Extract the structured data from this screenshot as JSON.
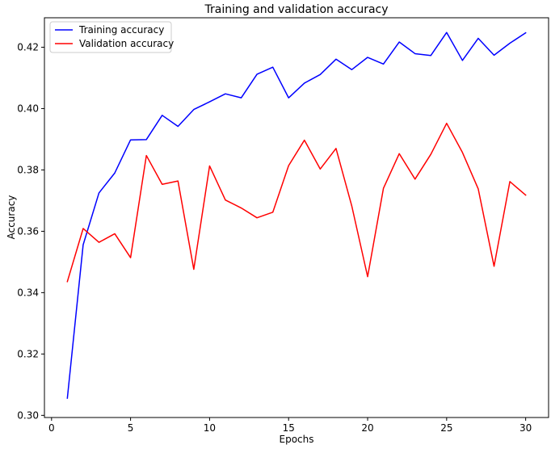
{
  "chart_data": {
    "type": "line",
    "title": "Training and validation accuracy",
    "xlabel": "Epochs",
    "ylabel": "Accuracy",
    "xlim": [
      -0.45,
      31.45
    ],
    "ylim": [
      0.2993,
      0.4296
    ],
    "xticks": [
      0,
      5,
      10,
      15,
      20,
      25,
      30
    ],
    "yticks": [
      0.3,
      0.32,
      0.34,
      0.36,
      0.38,
      0.4,
      0.42
    ],
    "xtick_labels": [
      "0",
      "5",
      "10",
      "15",
      "20",
      "25",
      "30"
    ],
    "ytick_labels": [
      "0.30",
      "0.32",
      "0.34",
      "0.36",
      "0.38",
      "0.40",
      "0.42"
    ],
    "grid": false,
    "legend_position": "top-left",
    "x": [
      1,
      2,
      3,
      4,
      5,
      6,
      7,
      8,
      9,
      10,
      11,
      12,
      13,
      14,
      15,
      16,
      17,
      18,
      19,
      20,
      21,
      22,
      23,
      24,
      25,
      26,
      27,
      28,
      29,
      30
    ],
    "series": [
      {
        "name": "Training accuracy",
        "color": "#0000ff",
        "values": [
          0.3056,
          0.3556,
          0.3725,
          0.379,
          0.3898,
          0.3899,
          0.3978,
          0.3942,
          0.3997,
          0.4022,
          0.4048,
          0.4035,
          0.4112,
          0.4135,
          0.4035,
          0.4083,
          0.4111,
          0.4161,
          0.4127,
          0.4167,
          0.4145,
          0.4217,
          0.4179,
          0.4173,
          0.4248,
          0.4157,
          0.4229,
          0.4174,
          0.4213,
          0.4247
        ]
      },
      {
        "name": "Validation accuracy",
        "color": "#ff0000",
        "values": [
          0.3436,
          0.3609,
          0.3564,
          0.3592,
          0.3514,
          0.3847,
          0.3753,
          0.3764,
          0.3476,
          0.3813,
          0.3702,
          0.3676,
          0.3644,
          0.3662,
          0.3814,
          0.3897,
          0.3803,
          0.387,
          0.3682,
          0.3452,
          0.374,
          0.3853,
          0.377,
          0.3851,
          0.3952,
          0.3857,
          0.3738,
          0.3486,
          0.3762,
          0.3718
        ]
      }
    ]
  }
}
